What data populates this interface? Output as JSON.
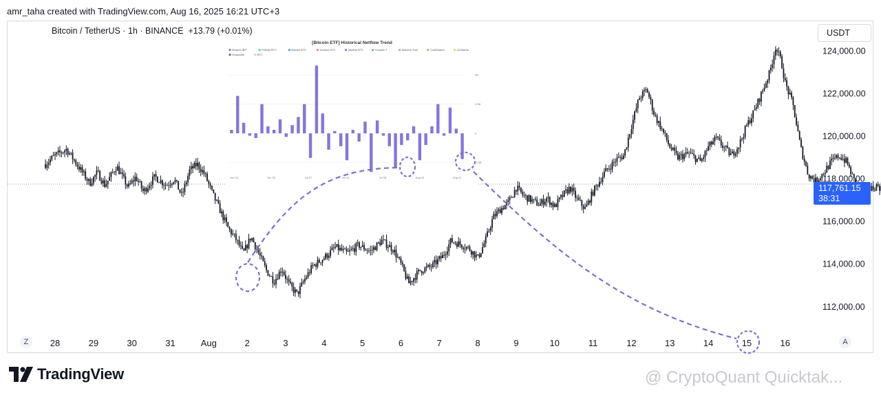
{
  "header": {
    "credit": "amr_taha created with TradingView.com, Aug 16, 2025 16:21 UTC+3"
  },
  "legend": {
    "symbol": "Bitcoin / TetherUS",
    "interval": "1h",
    "exchange": "BINANCE",
    "change": "+13.79 (+0.01%)"
  },
  "toolbar": {
    "currency_button": "USDT",
    "z_label": "Z",
    "a_label": "A"
  },
  "price_badge": {
    "price": "117,761.15",
    "countdown": "38:31"
  },
  "branding": {
    "logo_text": "TradingView",
    "watermark": "@ CryptoQuant Quicktak..."
  },
  "colors": {
    "candle": "#131722",
    "annotation": "#7b6fd0",
    "badge": "#2962ff",
    "inset_bar": "#8574e0"
  },
  "chart_data": [
    {
      "type": "candlestick",
      "series_name": "Bitcoin / TetherUS",
      "interval": "1h",
      "y_axis_labels": [
        "124,000.00",
        "122,000.00",
        "120,000.00",
        "118,000.00",
        "116,000.00",
        "114,000.00",
        "112,000.00"
      ],
      "x_axis_labels": [
        "28",
        "29",
        "30",
        "31",
        "Aug",
        "2",
        "3",
        "4",
        "5",
        "6",
        "7",
        "8",
        "9",
        "10",
        "11",
        "12",
        "13",
        "14",
        "15",
        "16"
      ],
      "ylim": [
        110800,
        125400
      ],
      "current_price": 117761.15,
      "path_points": [
        [
          27.75,
          118700
        ],
        [
          28.0,
          119100
        ],
        [
          28.3,
          119400
        ],
        [
          28.6,
          118600
        ],
        [
          28.9,
          117800
        ],
        [
          29.1,
          118300
        ],
        [
          29.3,
          117700
        ],
        [
          29.6,
          118600
        ],
        [
          29.9,
          117600
        ],
        [
          30.1,
          118100
        ],
        [
          30.3,
          117400
        ],
        [
          30.6,
          118100
        ],
        [
          30.9,
          117700
        ],
        [
          31.1,
          118000
        ],
        [
          31.3,
          117200
        ],
        [
          31.5,
          118400
        ],
        [
          31.7,
          118700
        ],
        [
          31.9,
          118200
        ],
        [
          32.1,
          117300
        ],
        [
          32.3,
          116500
        ],
        [
          32.5,
          115700
        ],
        [
          32.7,
          115200
        ],
        [
          32.9,
          114500
        ],
        [
          33.1,
          115300
        ],
        [
          33.3,
          114500
        ],
        [
          33.5,
          113700
        ],
        [
          33.7,
          113200
        ],
        [
          33.9,
          113800
        ],
        [
          34.1,
          113000
        ],
        [
          34.3,
          112600
        ],
        [
          34.5,
          113300
        ],
        [
          34.7,
          113900
        ],
        [
          35.0,
          114300
        ],
        [
          35.3,
          114800
        ],
        [
          35.6,
          114500
        ],
        [
          35.9,
          114900
        ],
        [
          36.2,
          114600
        ],
        [
          36.5,
          115100
        ],
        [
          36.8,
          114700
        ],
        [
          37.0,
          114000
        ],
        [
          37.2,
          113100
        ],
        [
          37.5,
          113700
        ],
        [
          37.8,
          113900
        ],
        [
          38.1,
          114400
        ],
        [
          38.3,
          115100
        ],
        [
          38.6,
          114900
        ],
        [
          38.8,
          114700
        ],
        [
          39.0,
          114300
        ],
        [
          39.2,
          115100
        ],
        [
          39.4,
          116200
        ],
        [
          39.6,
          116600
        ],
        [
          39.8,
          116900
        ],
        [
          40.0,
          117600
        ],
        [
          40.2,
          117200
        ],
        [
          40.4,
          117000
        ],
        [
          40.6,
          116800
        ],
        [
          40.8,
          117100
        ],
        [
          41.0,
          116700
        ],
        [
          41.2,
          117200
        ],
        [
          41.4,
          117600
        ],
        [
          41.6,
          117000
        ],
        [
          41.8,
          116600
        ],
        [
          42.0,
          117400
        ],
        [
          42.3,
          118300
        ],
        [
          42.6,
          118900
        ],
        [
          42.8,
          119100
        ],
        [
          43.0,
          120500
        ],
        [
          43.2,
          121800
        ],
        [
          43.4,
          122200
        ],
        [
          43.6,
          121000
        ],
        [
          43.8,
          120300
        ],
        [
          44.0,
          119500
        ],
        [
          44.2,
          119000
        ],
        [
          44.5,
          119200
        ],
        [
          44.8,
          118800
        ],
        [
          45.0,
          119500
        ],
        [
          45.2,
          119900
        ],
        [
          45.4,
          119500
        ],
        [
          45.6,
          119100
        ],
        [
          45.8,
          119600
        ],
        [
          46.0,
          120500
        ],
        [
          46.2,
          121200
        ],
        [
          46.4,
          122100
        ],
        [
          46.6,
          123000
        ],
        [
          46.75,
          124200
        ],
        [
          46.9,
          123500
        ],
        [
          47.0,
          122500
        ],
        [
          47.2,
          121500
        ],
        [
          47.4,
          119500
        ],
        [
          47.6,
          118200
        ],
        [
          47.8,
          117900
        ],
        [
          48.0,
          118300
        ],
        [
          48.2,
          118800
        ],
        [
          48.4,
          119100
        ],
        [
          48.6,
          118800
        ],
        [
          48.8,
          117900
        ],
        [
          49.0,
          117300
        ],
        [
          49.2,
          117500
        ],
        [
          49.4,
          117700
        ],
        [
          49.6,
          117400
        ],
        [
          49.75,
          117761
        ]
      ]
    },
    {
      "type": "bar",
      "title": "[Bitcoin ETF] Historical Netflow Trend",
      "legend": [
        "iShares IBIT",
        "Fidelity BTC",
        "Bitwise BTC",
        "Invesco BTC",
        "VanEck BTC",
        "Franklin T",
        "Wisdom Tree",
        "CoinShares",
        "21Shares",
        "Grayscale",
        "BTC"
      ],
      "legend_colors": [
        "#8574e0",
        "#5bc8d9",
        "#4fa3e0",
        "#f08c6a",
        "#8574e0",
        "#6aa4e8",
        "#9fc07a",
        "#e8a560",
        "#f4c86a",
        "#6b6b6b",
        "#cccccc"
      ],
      "y_tick_labels": [
        "5B",
        "2.5B",
        "0",
        "-2.5B"
      ],
      "y_ticks": [
        5,
        2.5,
        0,
        -2.5
      ],
      "ylim": [
        -3.4,
        6.0
      ],
      "x_tick_labels": [
        "Jun 23",
        "Jun 30",
        "Jul 07",
        "Jul 14",
        "Jul 28",
        "Aug 04",
        "Aug 11"
      ],
      "values": [
        0.3,
        3.2,
        0.9,
        -0.2,
        -0.4,
        2.5,
        0.6,
        0.3,
        1.2,
        -0.3,
        0.7,
        1.4,
        2.5,
        -2.1,
        5.8,
        1.7,
        -1.4,
        0.2,
        -1.1,
        -2.3,
        0.3,
        -0.7,
        1.0,
        -3.3,
        1.1,
        -0.2,
        -1.1,
        -3.0,
        -1.0,
        -0.6,
        0.6,
        -2.3,
        -1.0,
        0.6,
        2.5,
        -0.2,
        2.2,
        0.4,
        -2.2
      ]
    }
  ]
}
